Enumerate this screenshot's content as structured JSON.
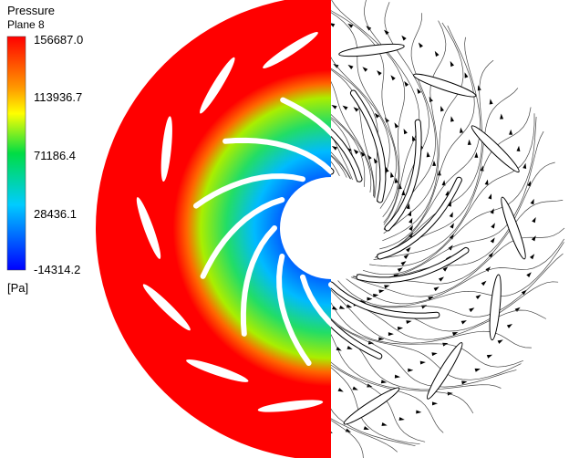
{
  "legend": {
    "title": "Pressure",
    "subtitle": "Plane 8",
    "ticks": [
      "156687.0",
      "113936.7",
      "71186.4",
      "28436.1",
      "-14314.2"
    ],
    "unit": "[Pa]"
  }
}
